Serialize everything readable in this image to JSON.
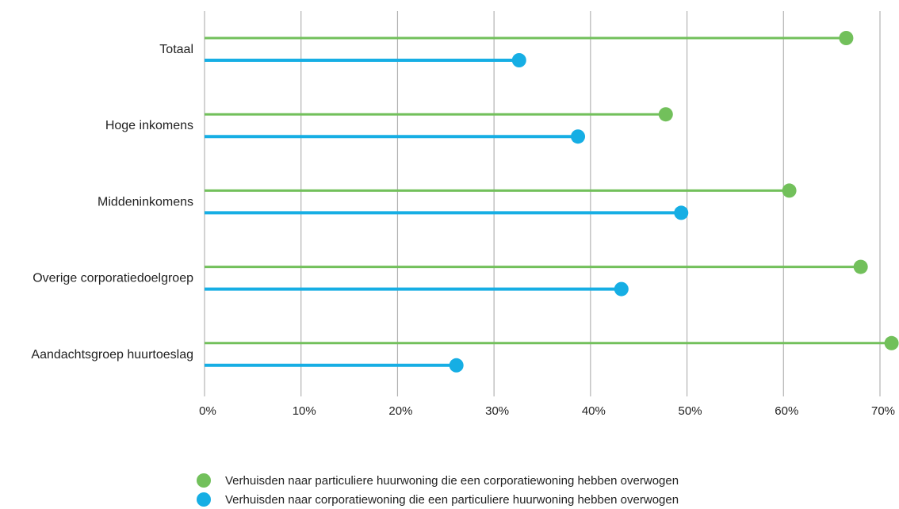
{
  "chart_data": {
    "type": "lollipop",
    "orientation": "horizontal",
    "categories": [
      "Totaal",
      "Hoge inkomens",
      "Middeninkomens",
      "Overige corporatiedoelgroep",
      "Aandachtsgroep huurtoeslag"
    ],
    "series": [
      {
        "name": "Verhuisden naar particuliere huurwoning die een corporatiewoning hebben overwogen",
        "color": "#72c05b",
        "values": [
          66.5,
          47.8,
          60.6,
          68.0,
          71.2
        ]
      },
      {
        "name": "Verhuisden naar corporatiewoning die een particuliere huurwoning hebben overwogen",
        "color": "#16aee4",
        "values": [
          32.6,
          38.7,
          49.4,
          43.2,
          26.1
        ]
      }
    ],
    "xlim": [
      0,
      70
    ],
    "xticks": [
      0,
      10,
      20,
      30,
      40,
      50,
      60,
      70
    ],
    "xtick_labels": [
      "0%",
      "10%",
      "20%",
      "30%",
      "40%",
      "50%",
      "60%",
      "70%"
    ],
    "grid": "vertical",
    "legend_position": "bottom"
  }
}
